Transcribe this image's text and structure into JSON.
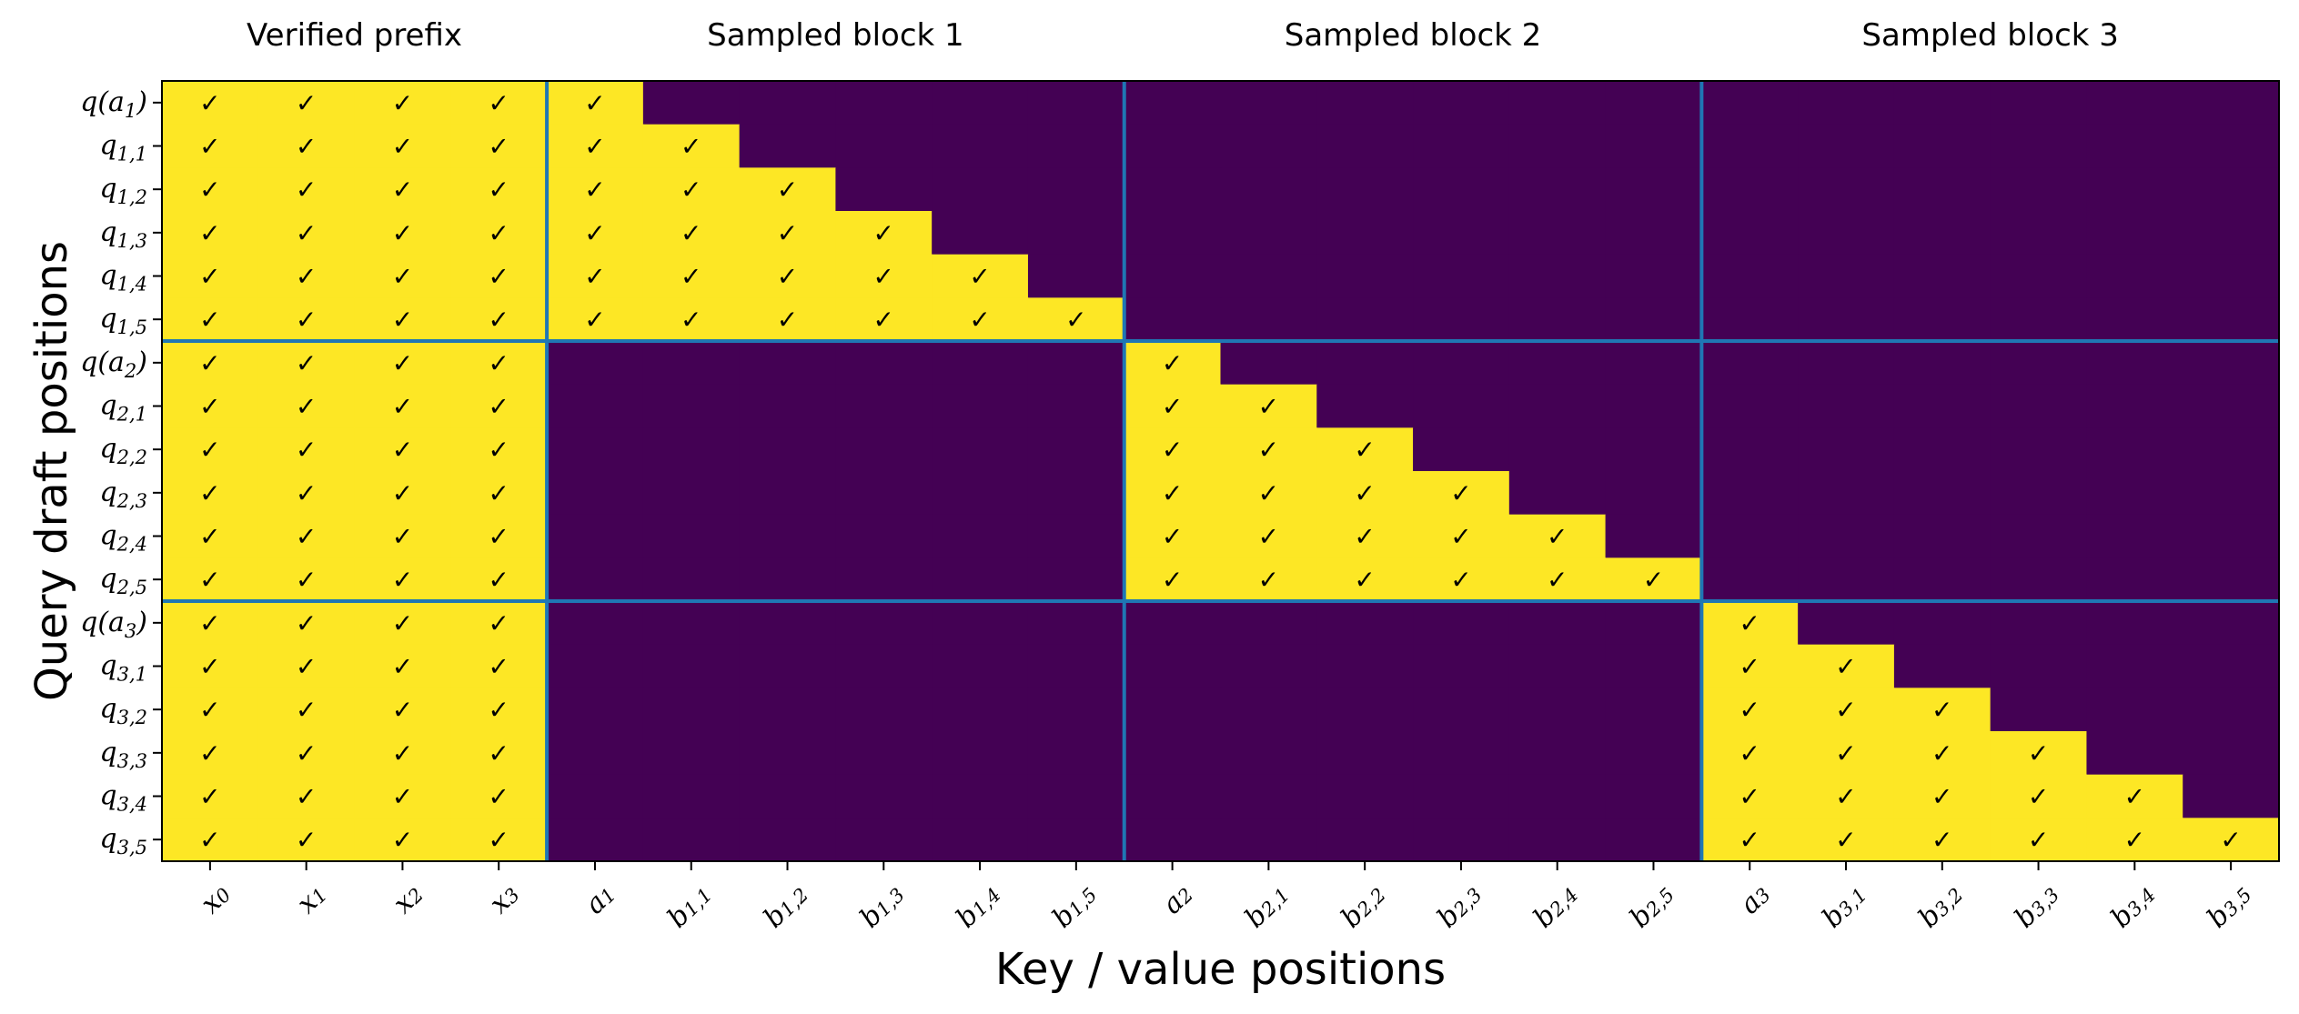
{
  "chart_data": {
    "type": "heatmap",
    "xlabel": "Key / value positions",
    "ylabel": "Query draft positions",
    "group_titles": [
      "Verified prefix",
      "Sampled block 1",
      "Sampled block 2",
      "Sampled block 3"
    ],
    "x_ticks": [
      {
        "base": "x",
        "sub": "0"
      },
      {
        "base": "x",
        "sub": "1"
      },
      {
        "base": "x",
        "sub": "2"
      },
      {
        "base": "x",
        "sub": "3"
      },
      {
        "base": "a",
        "sub": "1"
      },
      {
        "base": "b",
        "sub": "1,1"
      },
      {
        "base": "b",
        "sub": "1,2"
      },
      {
        "base": "b",
        "sub": "1,3"
      },
      {
        "base": "b",
        "sub": "1,4"
      },
      {
        "base": "b",
        "sub": "1,5"
      },
      {
        "base": "a",
        "sub": "2"
      },
      {
        "base": "b",
        "sub": "2,1"
      },
      {
        "base": "b",
        "sub": "2,2"
      },
      {
        "base": "b",
        "sub": "2,3"
      },
      {
        "base": "b",
        "sub": "2,4"
      },
      {
        "base": "b",
        "sub": "2,5"
      },
      {
        "base": "a",
        "sub": "3"
      },
      {
        "base": "b",
        "sub": "3,1"
      },
      {
        "base": "b",
        "sub": "3,2"
      },
      {
        "base": "b",
        "sub": "3,3"
      },
      {
        "base": "b",
        "sub": "3,4"
      },
      {
        "base": "b",
        "sub": "3,5"
      }
    ],
    "y_ticks": [
      {
        "pre": "q(a",
        "sub": "1",
        "post": ")"
      },
      {
        "pre": "q",
        "sub": "1,1",
        "post": ""
      },
      {
        "pre": "q",
        "sub": "1,2",
        "post": ""
      },
      {
        "pre": "q",
        "sub": "1,3",
        "post": ""
      },
      {
        "pre": "q",
        "sub": "1,4",
        "post": ""
      },
      {
        "pre": "q",
        "sub": "1,5",
        "post": ""
      },
      {
        "pre": "q(a",
        "sub": "2",
        "post": ")"
      },
      {
        "pre": "q",
        "sub": "2,1",
        "post": ""
      },
      {
        "pre": "q",
        "sub": "2,2",
        "post": ""
      },
      {
        "pre": "q",
        "sub": "2,3",
        "post": ""
      },
      {
        "pre": "q",
        "sub": "2,4",
        "post": ""
      },
      {
        "pre": "q",
        "sub": "2,5",
        "post": ""
      },
      {
        "pre": "q(a",
        "sub": "3",
        "post": ")"
      },
      {
        "pre": "q",
        "sub": "3,1",
        "post": ""
      },
      {
        "pre": "q",
        "sub": "3,2",
        "post": ""
      },
      {
        "pre": "q",
        "sub": "3,3",
        "post": ""
      },
      {
        "pre": "q",
        "sub": "3,4",
        "post": ""
      },
      {
        "pre": "q",
        "sub": "3,5",
        "post": ""
      }
    ],
    "check_symbol": "✓",
    "colors": {
      "allowed": "#fde725",
      "masked": "#440154",
      "separator": "#1f77b4"
    },
    "matrix": [
      [
        1,
        1,
        1,
        1,
        1,
        0,
        0,
        0,
        0,
        0,
        0,
        0,
        0,
        0,
        0,
        0,
        0,
        0,
        0,
        0,
        0,
        0
      ],
      [
        1,
        1,
        1,
        1,
        1,
        1,
        0,
        0,
        0,
        0,
        0,
        0,
        0,
        0,
        0,
        0,
        0,
        0,
        0,
        0,
        0,
        0
      ],
      [
        1,
        1,
        1,
        1,
        1,
        1,
        1,
        0,
        0,
        0,
        0,
        0,
        0,
        0,
        0,
        0,
        0,
        0,
        0,
        0,
        0,
        0
      ],
      [
        1,
        1,
        1,
        1,
        1,
        1,
        1,
        1,
        0,
        0,
        0,
        0,
        0,
        0,
        0,
        0,
        0,
        0,
        0,
        0,
        0,
        0
      ],
      [
        1,
        1,
        1,
        1,
        1,
        1,
        1,
        1,
        1,
        0,
        0,
        0,
        0,
        0,
        0,
        0,
        0,
        0,
        0,
        0,
        0,
        0
      ],
      [
        1,
        1,
        1,
        1,
        1,
        1,
        1,
        1,
        1,
        1,
        0,
        0,
        0,
        0,
        0,
        0,
        0,
        0,
        0,
        0,
        0,
        0
      ],
      [
        1,
        1,
        1,
        1,
        0,
        0,
        0,
        0,
        0,
        0,
        1,
        0,
        0,
        0,
        0,
        0,
        0,
        0,
        0,
        0,
        0,
        0
      ],
      [
        1,
        1,
        1,
        1,
        0,
        0,
        0,
        0,
        0,
        0,
        1,
        1,
        0,
        0,
        0,
        0,
        0,
        0,
        0,
        0,
        0,
        0
      ],
      [
        1,
        1,
        1,
        1,
        0,
        0,
        0,
        0,
        0,
        0,
        1,
        1,
        1,
        0,
        0,
        0,
        0,
        0,
        0,
        0,
        0,
        0
      ],
      [
        1,
        1,
        1,
        1,
        0,
        0,
        0,
        0,
        0,
        0,
        1,
        1,
        1,
        1,
        0,
        0,
        0,
        0,
        0,
        0,
        0,
        0
      ],
      [
        1,
        1,
        1,
        1,
        0,
        0,
        0,
        0,
        0,
        0,
        1,
        1,
        1,
        1,
        1,
        0,
        0,
        0,
        0,
        0,
        0,
        0
      ],
      [
        1,
        1,
        1,
        1,
        0,
        0,
        0,
        0,
        0,
        0,
        1,
        1,
        1,
        1,
        1,
        1,
        0,
        0,
        0,
        0,
        0,
        0
      ],
      [
        1,
        1,
        1,
        1,
        0,
        0,
        0,
        0,
        0,
        0,
        0,
        0,
        0,
        0,
        0,
        0,
        1,
        0,
        0,
        0,
        0,
        0
      ],
      [
        1,
        1,
        1,
        1,
        0,
        0,
        0,
        0,
        0,
        0,
        0,
        0,
        0,
        0,
        0,
        0,
        1,
        1,
        0,
        0,
        0,
        0
      ],
      [
        1,
        1,
        1,
        1,
        0,
        0,
        0,
        0,
        0,
        0,
        0,
        0,
        0,
        0,
        0,
        0,
        1,
        1,
        1,
        0,
        0,
        0
      ],
      [
        1,
        1,
        1,
        1,
        0,
        0,
        0,
        0,
        0,
        0,
        0,
        0,
        0,
        0,
        0,
        0,
        1,
        1,
        1,
        1,
        0,
        0
      ],
      [
        1,
        1,
        1,
        1,
        0,
        0,
        0,
        0,
        0,
        0,
        0,
        0,
        0,
        0,
        0,
        0,
        1,
        1,
        1,
        1,
        1,
        0
      ],
      [
        1,
        1,
        1,
        1,
        0,
        0,
        0,
        0,
        0,
        0,
        0,
        0,
        0,
        0,
        0,
        0,
        1,
        1,
        1,
        1,
        1,
        1
      ]
    ],
    "column_group_sizes": [
      4,
      6,
      6,
      6
    ],
    "row_group_sizes": [
      6,
      6,
      6
    ]
  }
}
